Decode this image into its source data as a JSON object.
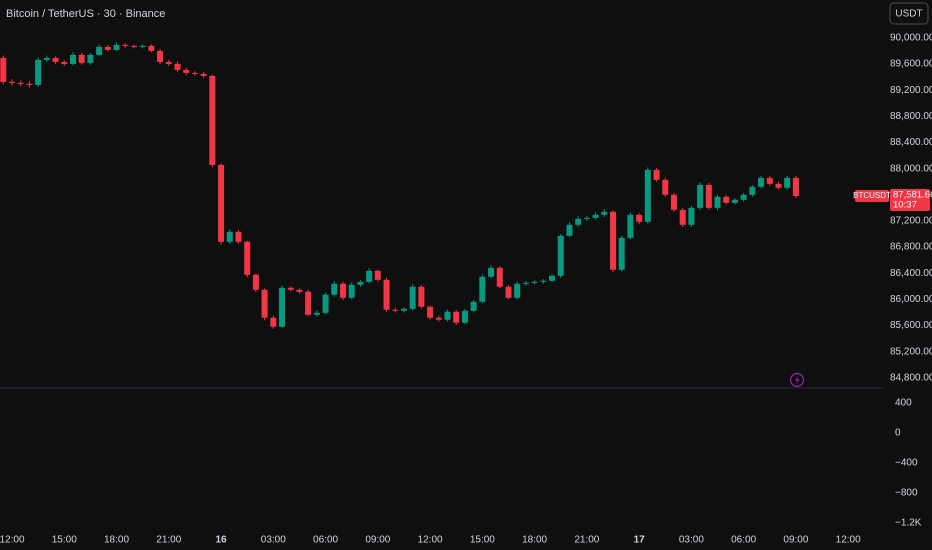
{
  "chart_data": {
    "type": "candlestick",
    "title": "Bitcoin / TetherUS · 30 · Binance",
    "currency": "USDT",
    "up_color": "#089981",
    "down_color": "#f23645",
    "grid": false,
    "categories": [
      null,
      "12:00",
      null,
      null,
      null,
      null,
      null,
      "15:00",
      null,
      null,
      null,
      null,
      null,
      "18:00",
      null,
      null,
      null,
      null,
      null,
      "21:00",
      null,
      null,
      null,
      null,
      null,
      "16",
      null,
      null,
      null,
      null,
      null,
      "03:00",
      null,
      null,
      null,
      null,
      null,
      "06:00",
      null,
      null,
      null,
      null,
      null,
      "09:00",
      null,
      null,
      null,
      null,
      null,
      "12:00",
      null,
      null,
      null,
      null,
      null,
      "15:00",
      null,
      null,
      null,
      null,
      null,
      "18:00",
      null,
      null,
      null,
      null,
      null,
      "21:00",
      null,
      null,
      null,
      null,
      null,
      "17",
      null,
      null,
      null,
      null,
      null,
      "03:00",
      null,
      null,
      null,
      null,
      null,
      "06:00",
      null,
      null,
      null,
      null,
      null,
      "09:00",
      null,
      null,
      null,
      null,
      null,
      "12:00"
    ],
    "open": [
      89694,
      89327,
      89312,
      89297,
      89281,
      89664,
      89694,
      89633,
      89602,
      89740,
      89618,
      89740,
      89862,
      89817,
      89893,
      89878,
      89862,
      89878,
      89801,
      89633,
      89602,
      89511,
      89465,
      89450,
      89419,
      88058,
      86881,
      87034,
      86881,
      86376,
      86147,
      85719,
      85582,
      86178,
      86147,
      86117,
      85765,
      85795,
      86071,
      86239,
      86025,
      86224,
      86269,
      86437,
      86300,
      85841,
      85826,
      85856,
      86193,
      85887,
      85719,
      85689,
      85811,
      85643,
      85826,
      85963,
      86346,
      86483,
      86193,
      86025,
      86239,
      86254,
      86269,
      86285,
      86361,
      86973,
      87141,
      87232,
      87248,
      87294,
      87340,
      86453,
      86942,
      87294,
      87187,
      87982,
      87829,
      87600,
      87370,
      87141,
      87401,
      87752,
      87401,
      87569,
      87477,
      87523,
      87600,
      87722,
      87859,
      87768,
      87707,
      87859,
      null,
      null,
      null,
      null,
      null,
      null
    ],
    "high": [
      89730,
      89370,
      89350,
      89340,
      89700,
      89730,
      89720,
      89660,
      89780,
      89770,
      89770,
      89900,
      89890,
      89930,
      89920,
      89900,
      89900,
      89900,
      89830,
      89660,
      89640,
      89540,
      89490,
      89480,
      89440,
      88080,
      87070,
      87060,
      86900,
      86400,
      86170,
      85750,
      86210,
      86200,
      86170,
      86150,
      85830,
      86100,
      86280,
      86270,
      86260,
      86300,
      86480,
      86460,
      86330,
      85870,
      85880,
      86230,
      86220,
      85910,
      85750,
      85840,
      85840,
      85850,
      85990,
      86380,
      86520,
      86510,
      86220,
      86270,
      86280,
      86290,
      86310,
      86390,
      87000,
      87180,
      87270,
      87280,
      87330,
      87380,
      87360,
      86970,
      87330,
      87320,
      88020,
      88010,
      87860,
      87630,
      87400,
      87430,
      87790,
      87780,
      87600,
      87600,
      87550,
      87630,
      87750,
      87890,
      87890,
      87800,
      87890,
      87890,
      null,
      null,
      null,
      null,
      null,
      null
    ],
    "low": [
      89290,
      89270,
      89260,
      89240,
      89250,
      89630,
      89600,
      89570,
      89580,
      89590,
      89590,
      89720,
      89790,
      89800,
      89850,
      89840,
      89840,
      89780,
      89600,
      89570,
      89480,
      89430,
      89420,
      89390,
      88020,
      86840,
      86850,
      86850,
      86340,
      86110,
      85680,
      85550,
      85560,
      86120,
      86090,
      85740,
      85740,
      85770,
      86040,
      85990,
      86000,
      86190,
      86240,
      86270,
      85810,
      85800,
      85800,
      85830,
      85860,
      85690,
      85660,
      85660,
      85610,
      85620,
      85800,
      85940,
      86320,
      86170,
      86000,
      86000,
      86210,
      86230,
      86240,
      86260,
      86330,
      86950,
      87110,
      87200,
      87220,
      87260,
      86420,
      86430,
      86920,
      87150,
      87160,
      87800,
      87570,
      87340,
      87110,
      87110,
      87370,
      87370,
      87370,
      87450,
      87450,
      87500,
      87570,
      87700,
      87740,
      87680,
      87680,
      87550,
      null,
      null,
      null,
      null,
      null,
      null
    ],
    "close": [
      89327,
      89312,
      89297,
      89281,
      89664,
      89694,
      89633,
      89602,
      89740,
      89618,
      89740,
      89862,
      89817,
      89893,
      89878,
      89862,
      89878,
      89801,
      89633,
      89602,
      89511,
      89465,
      89450,
      89419,
      88058,
      86881,
      87034,
      86881,
      86376,
      86147,
      85719,
      85582,
      86178,
      86147,
      86117,
      85765,
      85795,
      86071,
      86239,
      86025,
      86224,
      86269,
      86437,
      86300,
      85841,
      85826,
      85856,
      86193,
      85887,
      85719,
      85689,
      85811,
      85643,
      85826,
      85963,
      86346,
      86483,
      86193,
      86025,
      86239,
      86254,
      86269,
      86285,
      86361,
      86973,
      87141,
      87232,
      87248,
      87294,
      87340,
      86453,
      86942,
      87294,
      87187,
      87982,
      87829,
      87600,
      87370,
      87141,
      87401,
      87752,
      87401,
      87569,
      87477,
      87523,
      87600,
      87722,
      87859,
      87768,
      87707,
      87859,
      87581.66,
      null,
      null,
      null,
      null,
      null,
      null
    ],
    "ylim": [
      84660,
      90580
    ],
    "yticks": [
      {
        "value": 90000,
        "label": "90,000.00"
      },
      {
        "value": 89600,
        "label": "89,600.00"
      },
      {
        "value": 89200,
        "label": "89,200.00"
      },
      {
        "value": 88800,
        "label": "88,800.00"
      },
      {
        "value": 88400,
        "label": "88,400.00"
      },
      {
        "value": 88000,
        "label": "88,000.00"
      },
      {
        "value": 87200,
        "label": "87,200.00"
      },
      {
        "value": 86800,
        "label": "86,800.00"
      },
      {
        "value": 86400,
        "label": "86,400.00"
      },
      {
        "value": 86000,
        "label": "86,000.00"
      },
      {
        "value": 85600,
        "label": "85,600.00"
      },
      {
        "value": 85200,
        "label": "85,200.00"
      },
      {
        "value": 84800,
        "label": "84,800.00"
      }
    ],
    "last_price": {
      "symbol": "BTCUSDT",
      "label": "87,581.66",
      "countdown": "10:37"
    },
    "pane2_ylim": [
      -1320,
      600
    ],
    "pane2_yticks": [
      400,
      0,
      {
        "value": -400,
        "label": "−400"
      },
      {
        "value": -800,
        "label": "−800"
      },
      {
        "value": -1200,
        "label": "−1.2K"
      }
    ]
  }
}
